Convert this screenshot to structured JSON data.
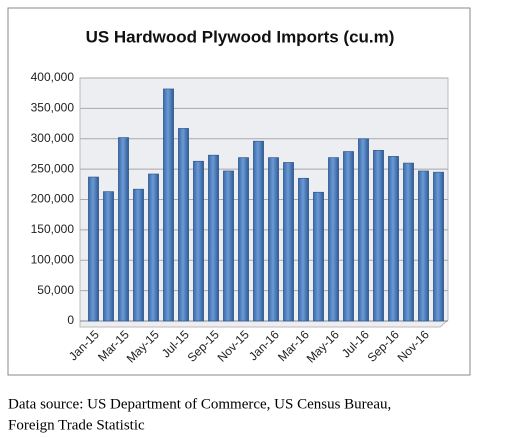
{
  "chart_data": {
    "type": "bar",
    "title": "US Hardwood Plywood Imports (cu.m)",
    "categories": [
      "Jan-15",
      null,
      "Mar-15",
      null,
      "May-15",
      null,
      "Jul-15",
      null,
      "Sep-15",
      null,
      "Nov-15",
      null,
      "Jan-16",
      null,
      "Mar-16",
      null,
      "May-16",
      null,
      "Jul-16",
      null,
      "Sep-16",
      null,
      "Nov-16",
      null
    ],
    "values": [
      237000,
      213000,
      302000,
      217000,
      242000,
      382000,
      317000,
      263000,
      273000,
      247000,
      269000,
      296000,
      269000,
      261000,
      235000,
      212000,
      269000,
      279000,
      300000,
      281000,
      271000,
      260000,
      247000,
      245000
    ],
    "color": "#4f81bd",
    "ylim": [
      0,
      400000
    ],
    "yticks": [
      0,
      {
        "value": 50000,
        "label": "50,000"
      },
      {
        "value": 100000,
        "label": "100,000"
      },
      {
        "value": 150000,
        "label": "150,000"
      },
      {
        "value": 200000,
        "label": "200,000"
      },
      {
        "value": 250000,
        "label": "250,000"
      },
      {
        "value": 300000,
        "label": "300,000"
      },
      {
        "value": 350000,
        "label": "350,000"
      },
      {
        "value": 400000,
        "label": "400,000"
      }
    ],
    "grid": true
  },
  "source_lines": [
    "Data source: US Department of Commerce, US Census Bureau,",
    "Foreign Trade Statistic"
  ]
}
